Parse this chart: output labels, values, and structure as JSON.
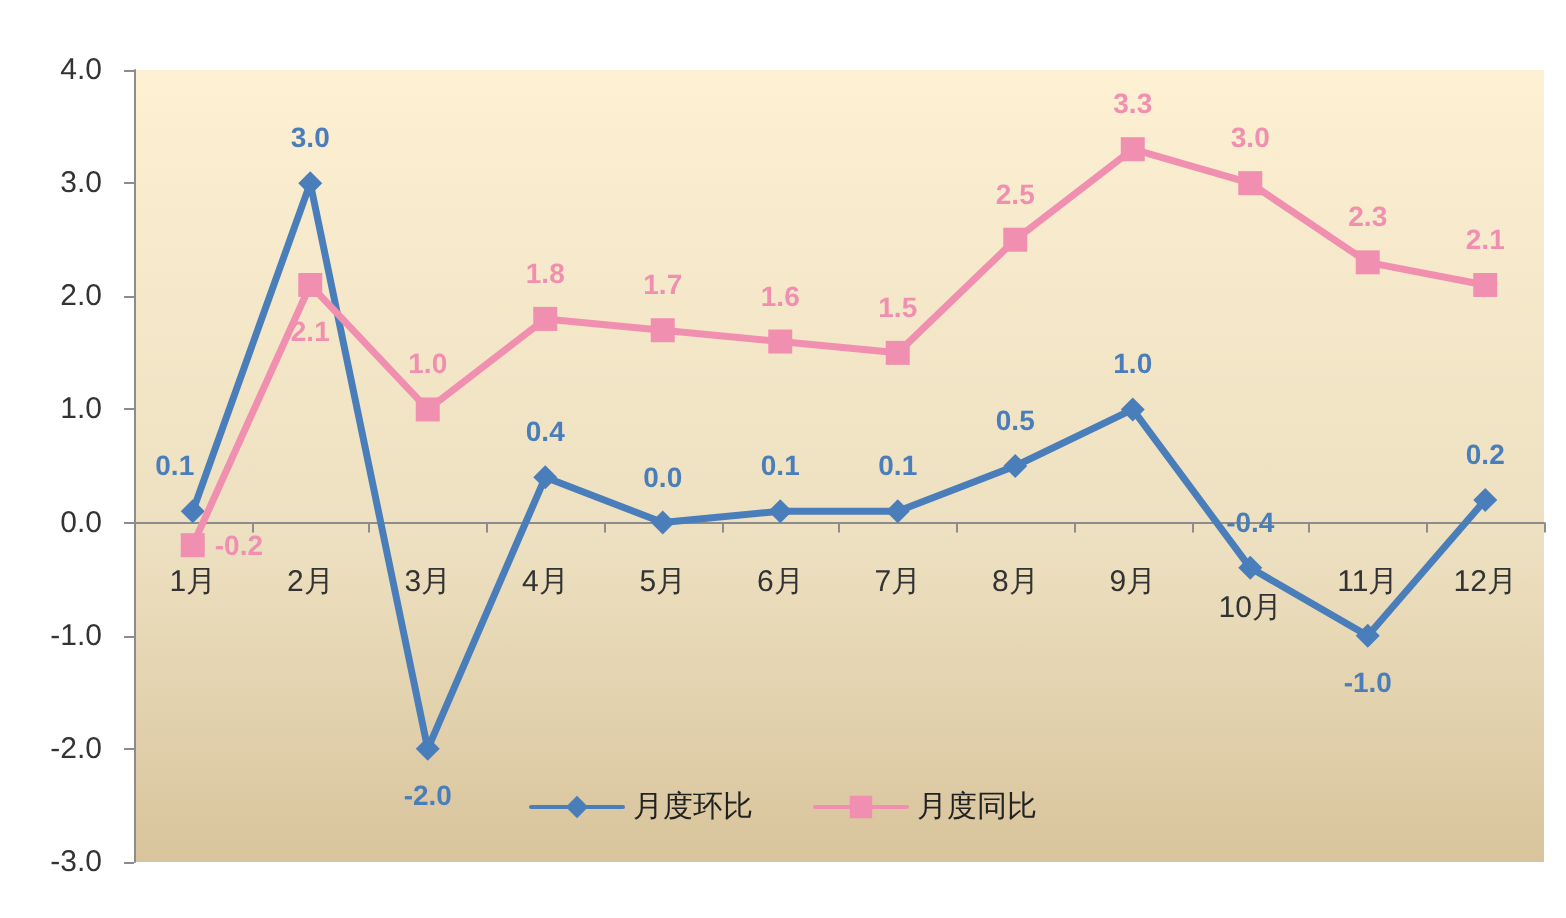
{
  "chart_data": {
    "type": "line",
    "categories": [
      "1月",
      "2月",
      "3月",
      "4月",
      "5月",
      "6月",
      "7月",
      "8月",
      "9月",
      "10月",
      "11月",
      "12月"
    ],
    "series": [
      {
        "name": "月度环比",
        "color": "#4a7ebb",
        "marker": "diamond",
        "values": [
          0.1,
          3.0,
          -2.0,
          0.4,
          0.0,
          0.1,
          0.1,
          0.5,
          1.0,
          -0.4,
          -1.0,
          0.2
        ],
        "value_labels": [
          "0.1",
          "3.0",
          "-2.0",
          "0.4",
          "0.0",
          "0.1",
          "0.1",
          "0.5",
          "1.0",
          "-0.4",
          "-1.0",
          "0.2"
        ]
      },
      {
        "name": "月度同比",
        "color": "#f08fb0",
        "marker": "square",
        "values": [
          -0.2,
          2.1,
          1.0,
          1.8,
          1.7,
          1.6,
          1.5,
          2.5,
          3.3,
          3.0,
          2.3,
          2.1
        ],
        "value_labels": [
          "-0.2",
          "2.1",
          "1.0",
          "1.8",
          "1.7",
          "1.6",
          "1.5",
          "2.5",
          "3.3",
          "3.0",
          "2.3",
          "2.1"
        ]
      }
    ],
    "ylim": [
      -3,
      4
    ],
    "yticks": [
      {
        "value": -3,
        "label": "-3.0"
      },
      {
        "value": -2,
        "label": "-2.0"
      },
      {
        "value": -1,
        "label": "-1.0"
      },
      {
        "value": 0,
        "label": "0.0"
      },
      {
        "value": 1,
        "label": "1.0"
      },
      {
        "value": 2,
        "label": "2.0"
      },
      {
        "value": 3,
        "label": "3.0"
      },
      {
        "value": 4,
        "label": "4.0"
      }
    ],
    "grid": false,
    "legend": "bottom",
    "line_style": "solid"
  }
}
